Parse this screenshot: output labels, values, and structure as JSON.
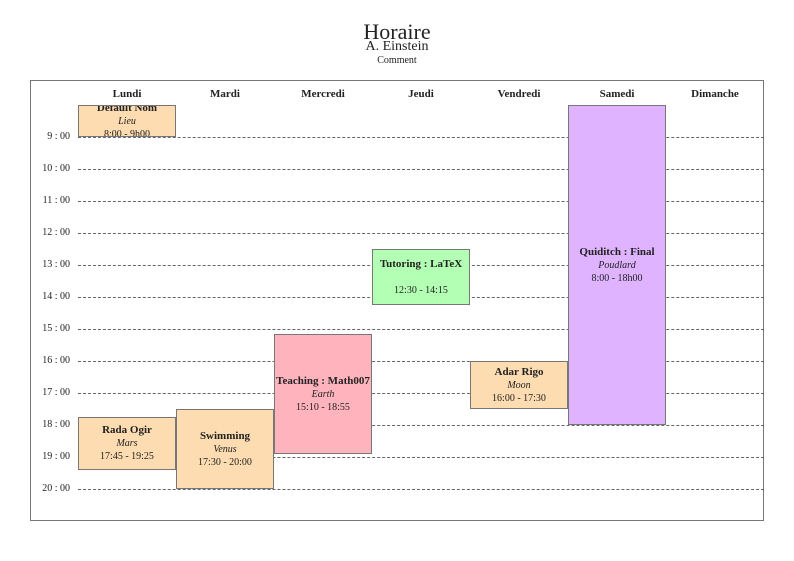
{
  "header": {
    "title": "Horaire",
    "author": "A. Einstein",
    "comment": "Comment"
  },
  "days": [
    "Lundi",
    "Mardi",
    "Mercredi",
    "Jeudi",
    "Vendredi",
    "Samedi",
    "Dimanche"
  ],
  "hours": [
    "9 : 00",
    "10 : 00",
    "11 : 00",
    "12 : 00",
    "13 : 00",
    "14 : 00",
    "15 : 00",
    "16 : 00",
    "17 : 00",
    "18 : 00",
    "19 : 00",
    "20 : 00"
  ],
  "colors": {
    "orange": "#fddcb1",
    "green": "#b3ffb3",
    "pink": "#ffb3bd",
    "purple": "#dfb3ff"
  },
  "events": [
    {
      "title": "Default Nom",
      "place": "Lieu",
      "time": "8:00 - 9h00",
      "day": 0,
      "start": "8:00",
      "end": "9:00",
      "color": "#fddcb1"
    },
    {
      "title": "Rada Ogir",
      "place": "Mars",
      "time": "17:45 - 19:25",
      "day": 0,
      "start": "17:45",
      "end": "19:25",
      "color": "#fddcb1"
    },
    {
      "title": "Swimming",
      "place": "Venus",
      "time": "17:30 - 20:00",
      "day": 1,
      "start": "17:30",
      "end": "20:00",
      "color": "#fddcb1"
    },
    {
      "title": "Teaching : Math007",
      "place": "Earth",
      "time": "15:10 - 18:55",
      "day": 2,
      "start": "15:10",
      "end": "18:55",
      "color": "#ffb3bd"
    },
    {
      "title": "Tutoring : LaTeX",
      "place": "",
      "time": "12:30 - 14:15",
      "day": 3,
      "start": "12:30",
      "end": "14:15",
      "color": "#b3ffb3"
    },
    {
      "title": "Adar Rigo",
      "place": "Moon",
      "time": "16:00 - 17:30",
      "day": 4,
      "start": "16:00",
      "end": "17:30",
      "color": "#fddcb1"
    },
    {
      "title": "Quiditch : Final",
      "place": "Poudlard",
      "time": "8:00 - 18h00",
      "day": 5,
      "start": "8:00",
      "end": "18:00",
      "color": "#dfb3ff"
    }
  ]
}
